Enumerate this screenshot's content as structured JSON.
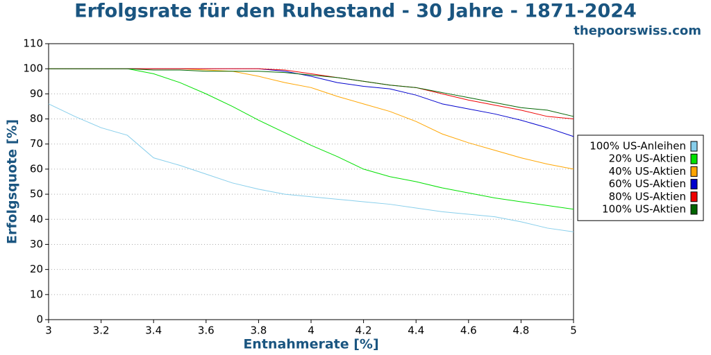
{
  "chart_data": {
    "type": "line",
    "title": "Erfolgsrate für den Ruhestand - 30 Jahre - 1871-2024",
    "source": "thepoorswiss.com",
    "xlabel": "Entnahmerate [%]",
    "ylabel": "Erfolgsquote [%]",
    "x": [
      3,
      3.1,
      3.2,
      3.3,
      3.4,
      3.5,
      3.6,
      3.7,
      3.8,
      3.9,
      4,
      4.1,
      4.2,
      4.3,
      4.4,
      4.5,
      4.6,
      4.7,
      4.8,
      4.9,
      5
    ],
    "series": [
      {
        "name": "100% US-Anleihen",
        "color": "#87ceeb",
        "values": [
          86,
          81,
          76.5,
          73.5,
          64.5,
          61.5,
          58,
          54.5,
          52,
          50,
          49,
          48,
          47,
          46,
          44.5,
          43,
          42,
          41,
          39,
          36.5,
          35
        ]
      },
      {
        "name": "20% US-Aktien",
        "color": "#00e000",
        "values": [
          100,
          100,
          100,
          100,
          98,
          94.5,
          90,
          85,
          79.5,
          74.5,
          69.5,
          65,
          60,
          57,
          55,
          52.5,
          50.5,
          48.5,
          47,
          45.5,
          44
        ]
      },
      {
        "name": "40% US-Aktien",
        "color": "#ffa500",
        "values": [
          100,
          100,
          100,
          100,
          100,
          100,
          99.5,
          99,
          97,
          94.5,
          92.5,
          89,
          86,
          83,
          79,
          74,
          70.5,
          67.5,
          64.5,
          62,
          60
        ]
      },
      {
        "name": "60% US-Aktien",
        "color": "#0000cd",
        "values": [
          100,
          100,
          100,
          100,
          100,
          100,
          100,
          100,
          100,
          99,
          97,
          94.5,
          93,
          92,
          89.5,
          86,
          84,
          82,
          79.5,
          76.5,
          73
        ]
      },
      {
        "name": "80% US-Aktien",
        "color": "#ee0000",
        "values": [
          100,
          100,
          100,
          100,
          100,
          100,
          100,
          100,
          100,
          99.5,
          98,
          96.5,
          95,
          93.5,
          92.5,
          90,
          87.5,
          85.5,
          83.5,
          81,
          80
        ]
      },
      {
        "name": "100% US-Aktien",
        "color": "#006400",
        "values": [
          100,
          100,
          100,
          100,
          99.5,
          99.5,
          99,
          99,
          99,
          98.5,
          97.5,
          96.5,
          95,
          93.5,
          92.5,
          90.5,
          88.5,
          86.5,
          84.5,
          83.5,
          81
        ]
      }
    ],
    "xlim": [
      3,
      5
    ],
    "xticks": [
      3,
      3.2,
      3.4,
      3.6,
      3.8,
      4,
      4.2,
      4.4,
      4.6,
      4.8,
      5
    ],
    "ylim": [
      0,
      110
    ],
    "yticks": [
      0,
      10,
      20,
      30,
      40,
      50,
      60,
      70,
      80,
      90,
      100,
      110
    ],
    "grid": true,
    "legend": "right"
  }
}
